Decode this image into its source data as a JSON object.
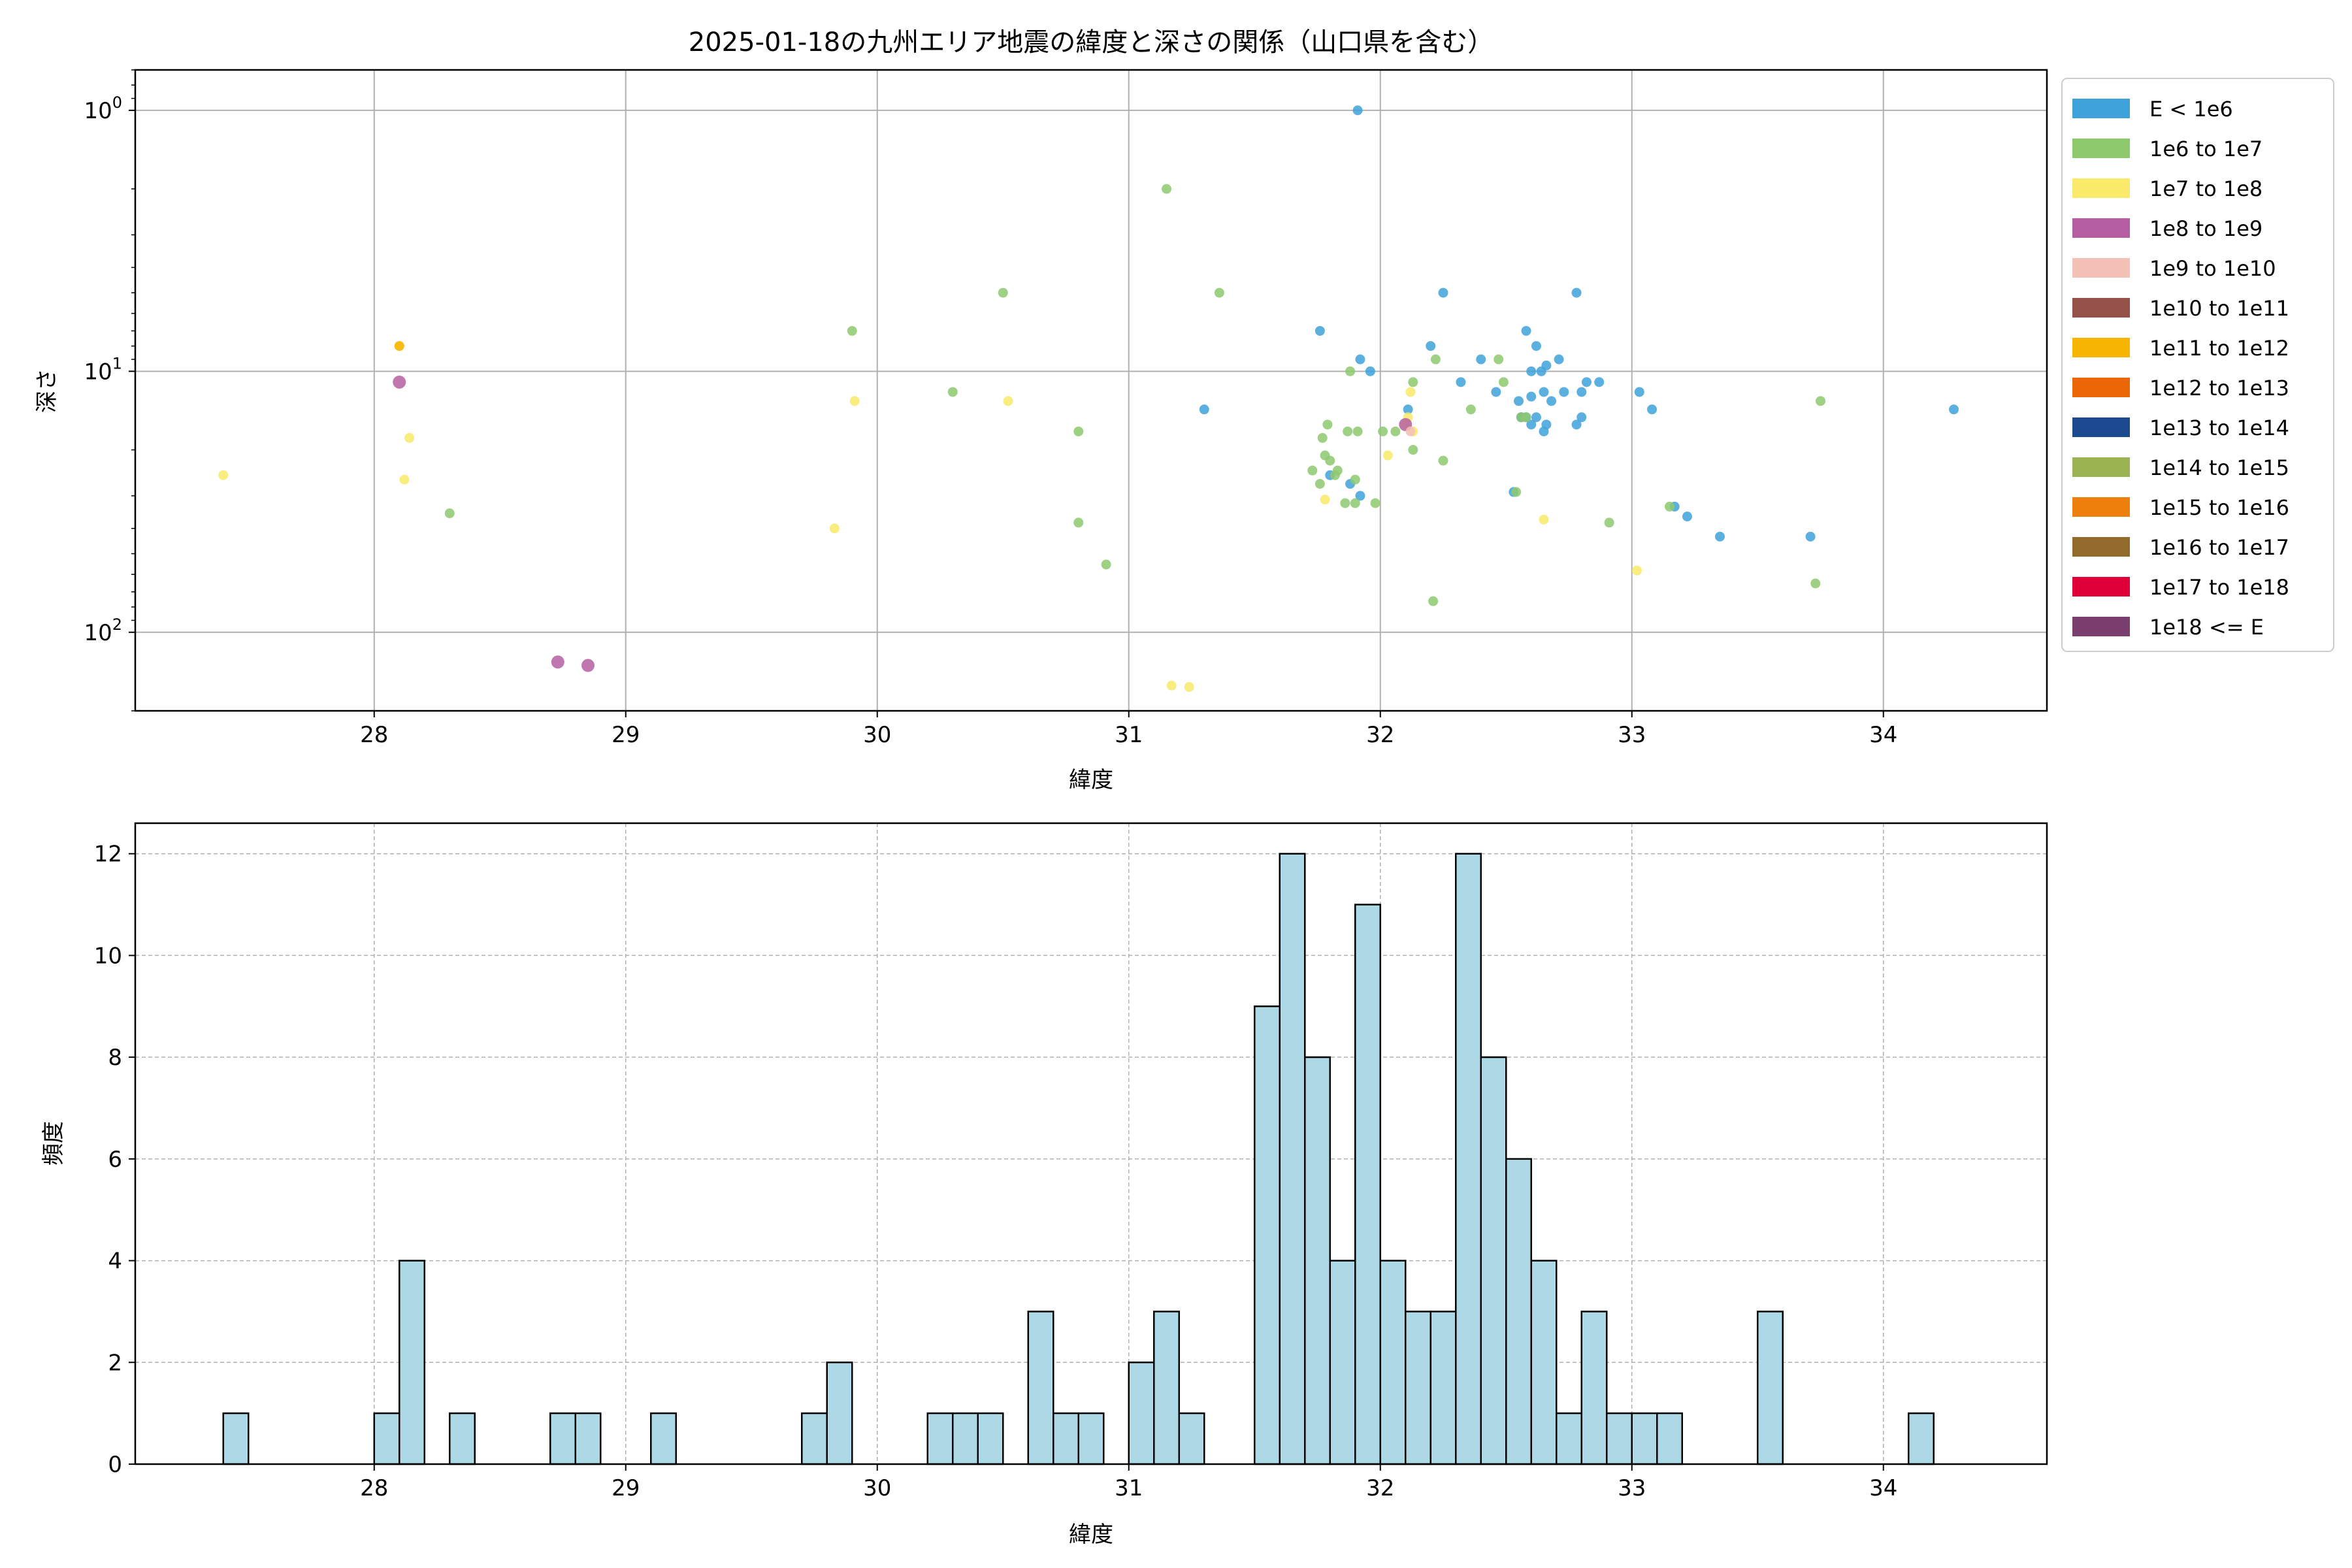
{
  "chart_data": [
    {
      "type": "scatter",
      "title": "2025-01-18の九州エリア地震の緯度と深さの関係（山口県を含む）",
      "xlabel": "緯度",
      "ylabel": "深さ",
      "xlim": [
        27.05,
        34.65
      ],
      "ylim": [
        0.7,
        200
      ],
      "y_scale": "log",
      "y_inverted": true,
      "grid": true,
      "x_ticks": [
        28,
        29,
        30,
        31,
        32,
        33,
        34
      ],
      "y_ticks": [
        {
          "value": 1,
          "base": "10",
          "exp": "0"
        },
        {
          "value": 10,
          "base": "10",
          "exp": "1"
        },
        {
          "value": 100,
          "base": "10",
          "exp": "2"
        }
      ],
      "legend_position": "outside-right",
      "legend": [
        {
          "label": "E < 1e6",
          "color": "#3fa2da"
        },
        {
          "label": "1e6 to 1e7",
          "color": "#8ec96e"
        },
        {
          "label": "1e7 to 1e8",
          "color": "#f9ea6a"
        },
        {
          "label": "1e8 to 1e9",
          "color": "#b55fa2"
        },
        {
          "label": "1e9 to 1e10",
          "color": "#f4c0b8"
        },
        {
          "label": "1e10 to 1e11",
          "color": "#955149"
        },
        {
          "label": "1e11 to 1e12",
          "color": "#f7b402"
        },
        {
          "label": "1e12 to 1e13",
          "color": "#ec6608"
        },
        {
          "label": "1e13 to 1e14",
          "color": "#1b4a91"
        },
        {
          "label": "1e14 to 1e15",
          "color": "#9bb350"
        },
        {
          "label": "1e15 to 1e16",
          "color": "#ee7f0d"
        },
        {
          "label": "1e16 to 1e17",
          "color": "#926a2c"
        },
        {
          "label": "1e17 to 1e18",
          "color": "#e00039"
        },
        {
          "label": "1e18 <= E",
          "color": "#7c3e6c"
        }
      ],
      "series": [
        {
          "name": "E < 1e6",
          "color": "#3fa2da",
          "points": [
            [
              31.91,
              1.0
            ],
            [
              32.25,
              5.0
            ],
            [
              32.78,
              5.0
            ],
            [
              31.76,
              7.0
            ],
            [
              32.58,
              7.0
            ],
            [
              32.62,
              8.0
            ],
            [
              32.2,
              8.0
            ],
            [
              32.4,
              9.0
            ],
            [
              32.66,
              9.5
            ],
            [
              32.71,
              9.0
            ],
            [
              31.92,
              9.0
            ],
            [
              31.96,
              10.0
            ],
            [
              32.6,
              10.0
            ],
            [
              32.64,
              10.0
            ],
            [
              32.32,
              11.0
            ],
            [
              32.46,
              12.0
            ],
            [
              32.55,
              13.0
            ],
            [
              32.6,
              12.5
            ],
            [
              32.65,
              12.0
            ],
            [
              32.68,
              13.0
            ],
            [
              32.73,
              12.0
            ],
            [
              32.8,
              12.0
            ],
            [
              32.82,
              11.0
            ],
            [
              32.87,
              11.0
            ],
            [
              33.03,
              12.0
            ],
            [
              33.08,
              14.0
            ],
            [
              31.3,
              14.0
            ],
            [
              32.11,
              14.0
            ],
            [
              32.56,
              15.0
            ],
            [
              32.6,
              16.0
            ],
            [
              32.66,
              16.0
            ],
            [
              32.8,
              15.0
            ],
            [
              32.78,
              16.0
            ],
            [
              32.65,
              17.0
            ],
            [
              34.28,
              14.0
            ],
            [
              31.88,
              27.0
            ],
            [
              31.92,
              30.0
            ],
            [
              32.53,
              29.0
            ],
            [
              33.17,
              33.0
            ],
            [
              33.22,
              36.0
            ],
            [
              33.35,
              43.0
            ],
            [
              33.71,
              43.0
            ],
            [
              32.56,
              15.0
            ],
            [
              32.58,
              15.0
            ],
            [
              32.62,
              15.0
            ],
            [
              31.8,
              25.0
            ]
          ]
        },
        {
          "name": "1e6 to 1e7",
          "color": "#8ec96e",
          "points": [
            [
              31.15,
              2.0
            ],
            [
              30.5,
              5.0
            ],
            [
              31.36,
              5.0
            ],
            [
              29.9,
              7.0
            ],
            [
              32.22,
              9.0
            ],
            [
              32.13,
              11.0
            ],
            [
              32.47,
              9.0
            ],
            [
              31.88,
              10.0
            ],
            [
              32.49,
              11.0
            ],
            [
              30.3,
              12.0
            ],
            [
              33.75,
              13.0
            ],
            [
              32.36,
              14.0
            ],
            [
              32.58,
              15.0
            ],
            [
              31.79,
              16.0
            ],
            [
              31.87,
              17.0
            ],
            [
              31.91,
              17.0
            ],
            [
              31.77,
              18.0
            ],
            [
              32.01,
              17.0
            ],
            [
              32.06,
              17.0
            ],
            [
              32.13,
              20.0
            ],
            [
              30.8,
              17.0
            ],
            [
              31.78,
              21.0
            ],
            [
              31.8,
              22.0
            ],
            [
              31.73,
              24.0
            ],
            [
              31.83,
              24.0
            ],
            [
              31.9,
              26.0
            ],
            [
              31.76,
              27.0
            ],
            [
              31.82,
              25.0
            ],
            [
              32.25,
              22.0
            ],
            [
              31.86,
              32.0
            ],
            [
              31.9,
              32.0
            ],
            [
              31.98,
              32.0
            ],
            [
              32.54,
              29.0
            ],
            [
              28.3,
              35.0
            ],
            [
              30.8,
              38.0
            ],
            [
              32.91,
              38.0
            ],
            [
              33.15,
              33.0
            ],
            [
              30.91,
              55.0
            ],
            [
              33.73,
              65.0
            ],
            [
              32.21,
              76.0
            ],
            [
              32.56,
              15.0
            ]
          ]
        },
        {
          "name": "1e7 to 1e8",
          "color": "#f9ea6a",
          "points": [
            [
              28.1,
              8.0
            ],
            [
              29.91,
              13.0
            ],
            [
              30.52,
              13.0
            ],
            [
              32.12,
              12.0
            ],
            [
              32.11,
              15.0
            ],
            [
              28.14,
              18.0
            ],
            [
              32.03,
              21.0
            ],
            [
              27.4,
              25.0
            ],
            [
              28.12,
              26.0
            ],
            [
              31.78,
              31.0
            ],
            [
              32.65,
              37.0
            ],
            [
              29.83,
              40.0
            ],
            [
              33.02,
              58.0
            ],
            [
              31.17,
              160.0
            ],
            [
              31.24,
              162.0
            ],
            [
              32.1,
              16.0
            ],
            [
              32.13,
              17.0
            ]
          ]
        },
        {
          "name": "1e8 to 1e9",
          "color": "#b55fa2",
          "points": [
            [
              28.1,
              11.0
            ],
            [
              32.1,
              16.0
            ],
            [
              28.73,
              130.0
            ],
            [
              28.85,
              134.0
            ]
          ]
        },
        {
          "name": "1e9 to 1e10",
          "color": "#f4c0b8",
          "points": [
            [
              32.12,
              17.0
            ]
          ]
        },
        {
          "name": "1e11 to 1e12",
          "color": "#f7b402",
          "points": [
            [
              28.1,
              8.0
            ]
          ]
        }
      ]
    },
    {
      "type": "bar",
      "xlabel": "緯度",
      "ylabel": "頻度",
      "xlim": [
        27.05,
        34.65
      ],
      "ylim": [
        0,
        12.6
      ],
      "grid": true,
      "grid_style": "dashed",
      "x_ticks": [
        28,
        29,
        30,
        31,
        32,
        33,
        34
      ],
      "y_ticks": [
        0,
        2,
        4,
        6,
        8,
        10,
        12
      ],
      "bar_color": "#add8e6",
      "bin_start": 27.4,
      "bin_width": 0.1,
      "counts": [
        1,
        0,
        0,
        0,
        0,
        0,
        1,
        4,
        0,
        1,
        0,
        0,
        0,
        1,
        1,
        0,
        0,
        1,
        0,
        0,
        0,
        0,
        0,
        1,
        2,
        0,
        0,
        0,
        1,
        1,
        1,
        0,
        3,
        1,
        1,
        0,
        2,
        3,
        1,
        0,
        0,
        9,
        12,
        8,
        4,
        11,
        4,
        3,
        3,
        12,
        8,
        6,
        4,
        1,
        3,
        1,
        1,
        1,
        0,
        0,
        0,
        3,
        0,
        0,
        0,
        0,
        0,
        1
      ]
    }
  ]
}
